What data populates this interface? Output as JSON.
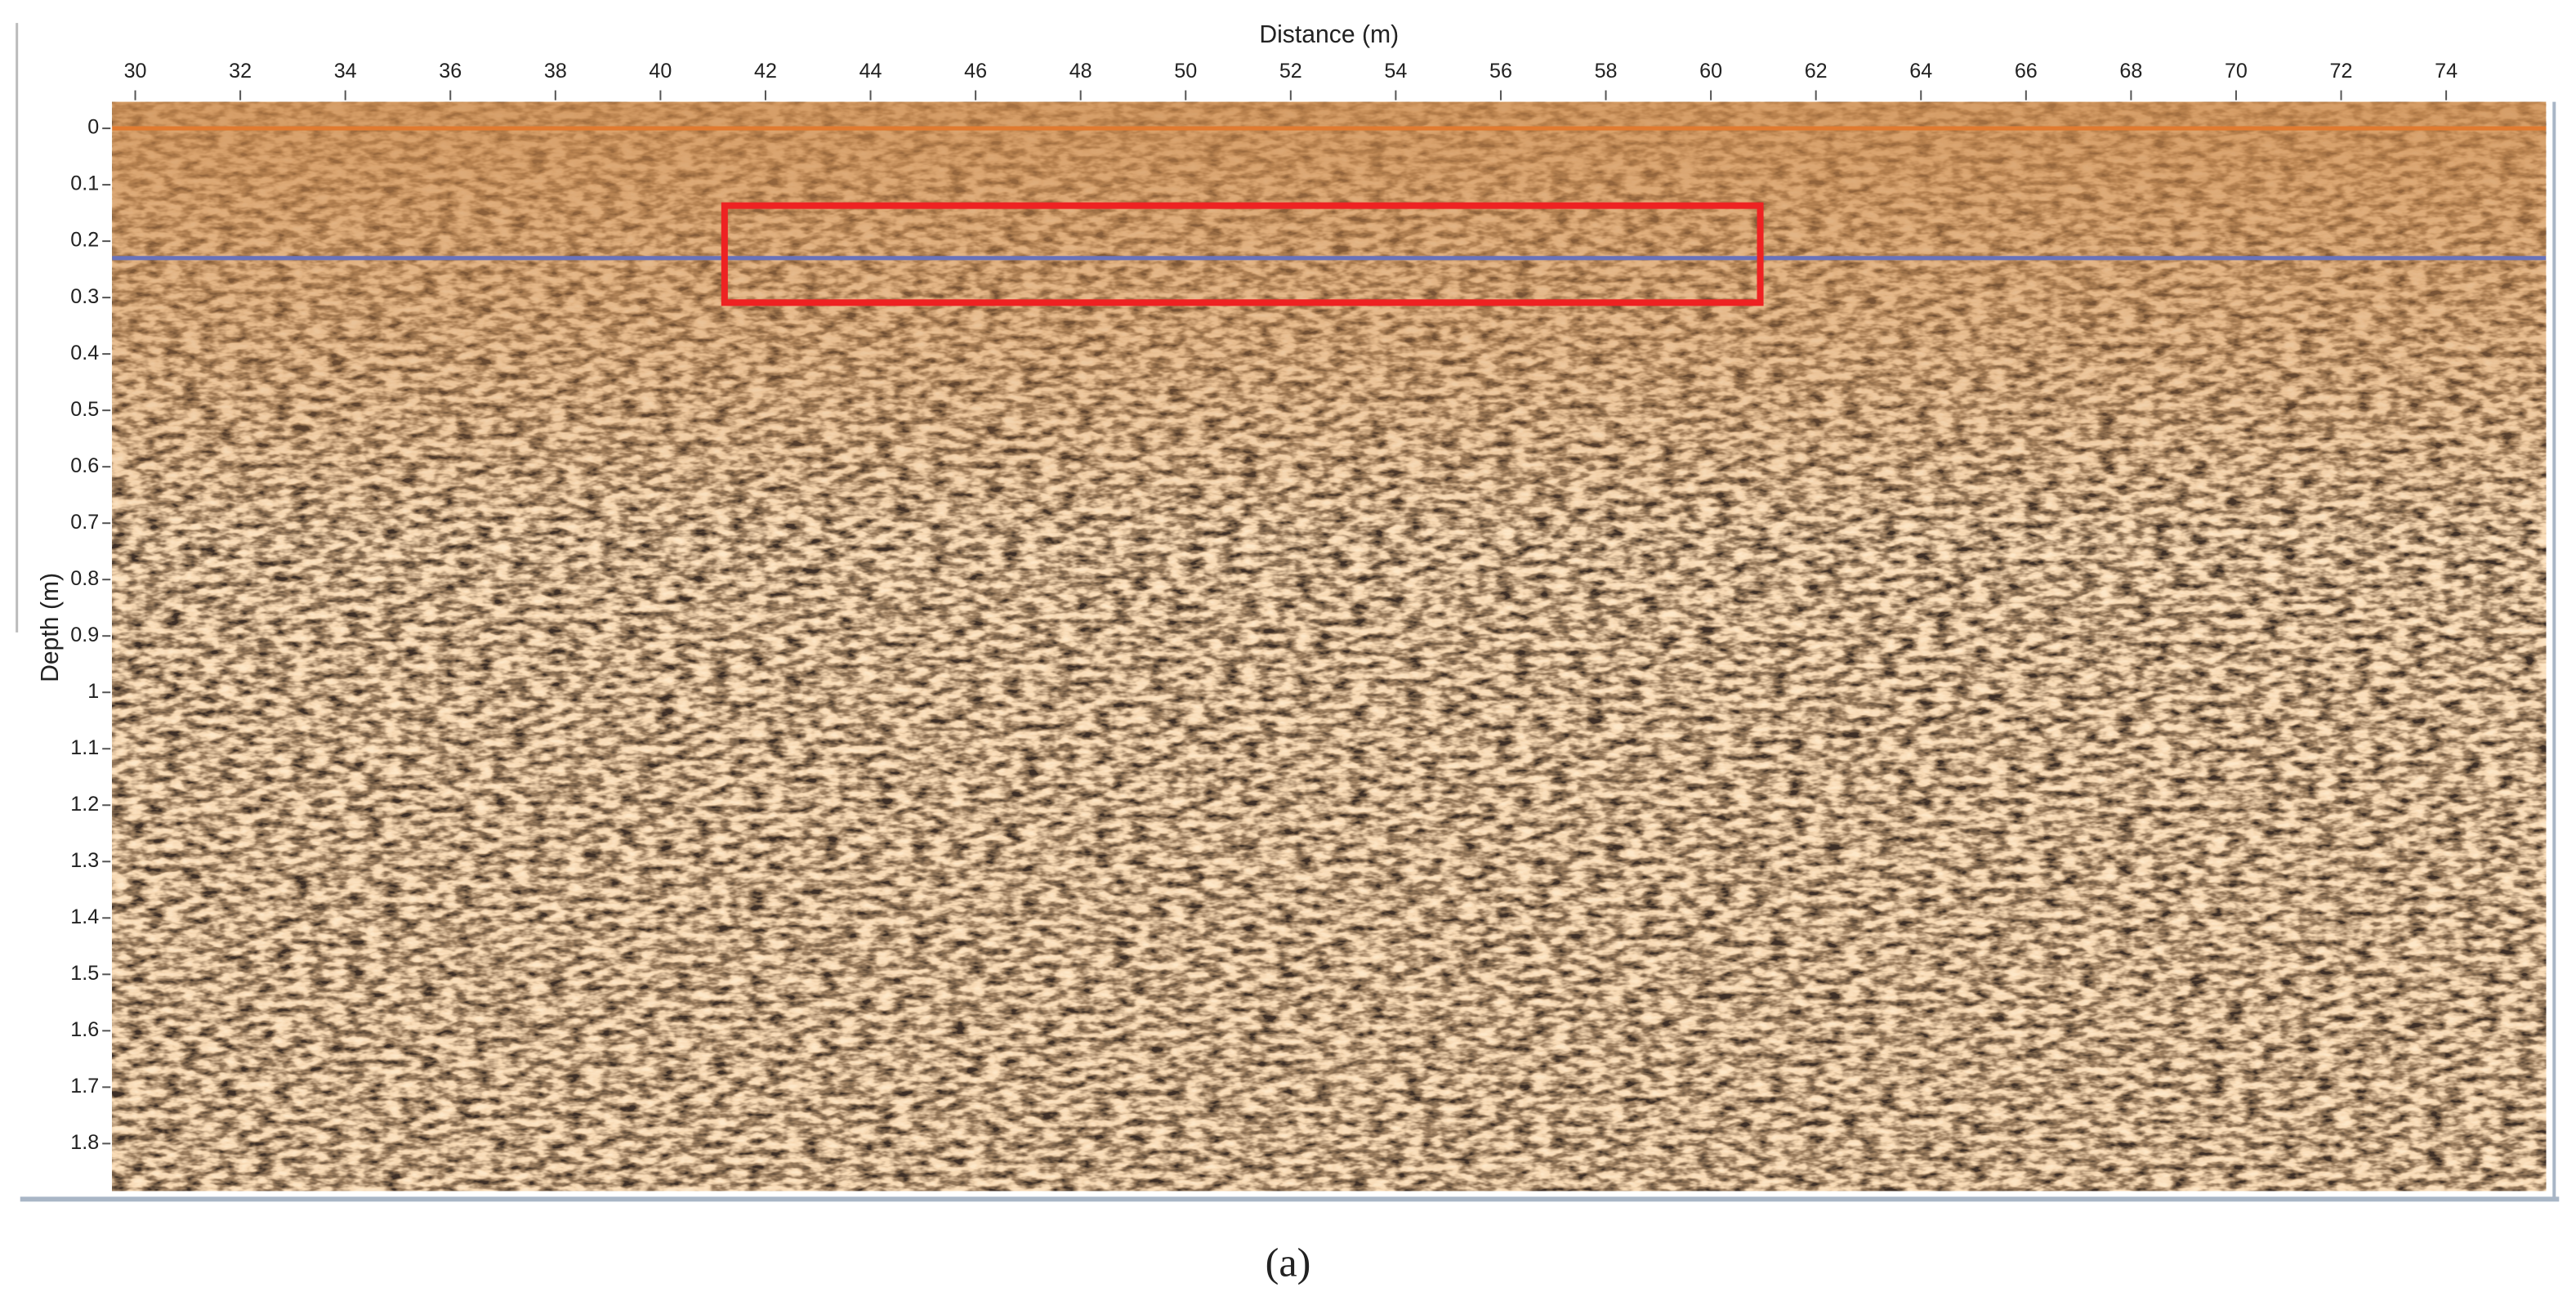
{
  "chart_data": {
    "type": "radargram",
    "x_label": "Distance (m)",
    "y_label": "Depth (m)",
    "xlim": [
      29.56,
      75.9
    ],
    "ylim": [
      -0.047,
      1.884
    ],
    "y_inverted": true,
    "xticks": [
      30,
      32,
      34,
      36,
      38,
      40,
      42,
      44,
      46,
      48,
      50,
      52,
      54,
      56,
      58,
      60,
      62,
      64,
      66,
      68,
      70,
      72,
      74
    ],
    "yticks": [
      0,
      0.1,
      0.2,
      0.3,
      0.4,
      0.5,
      0.6,
      0.7,
      0.8,
      0.9,
      1,
      1.1,
      1.2,
      1.3,
      1.4,
      1.5,
      1.6,
      1.7,
      1.8
    ],
    "horizontal_lines": [
      {
        "depth": 0,
        "color": "#e07a30"
      },
      {
        "depth": 0.23,
        "color": "#6a72b8"
      }
    ],
    "highlight_box": {
      "x": [
        41.22,
        60.94
      ],
      "y": [
        0.137,
        0.309
      ],
      "color": "#ee2222"
    },
    "caption": "(a)"
  }
}
